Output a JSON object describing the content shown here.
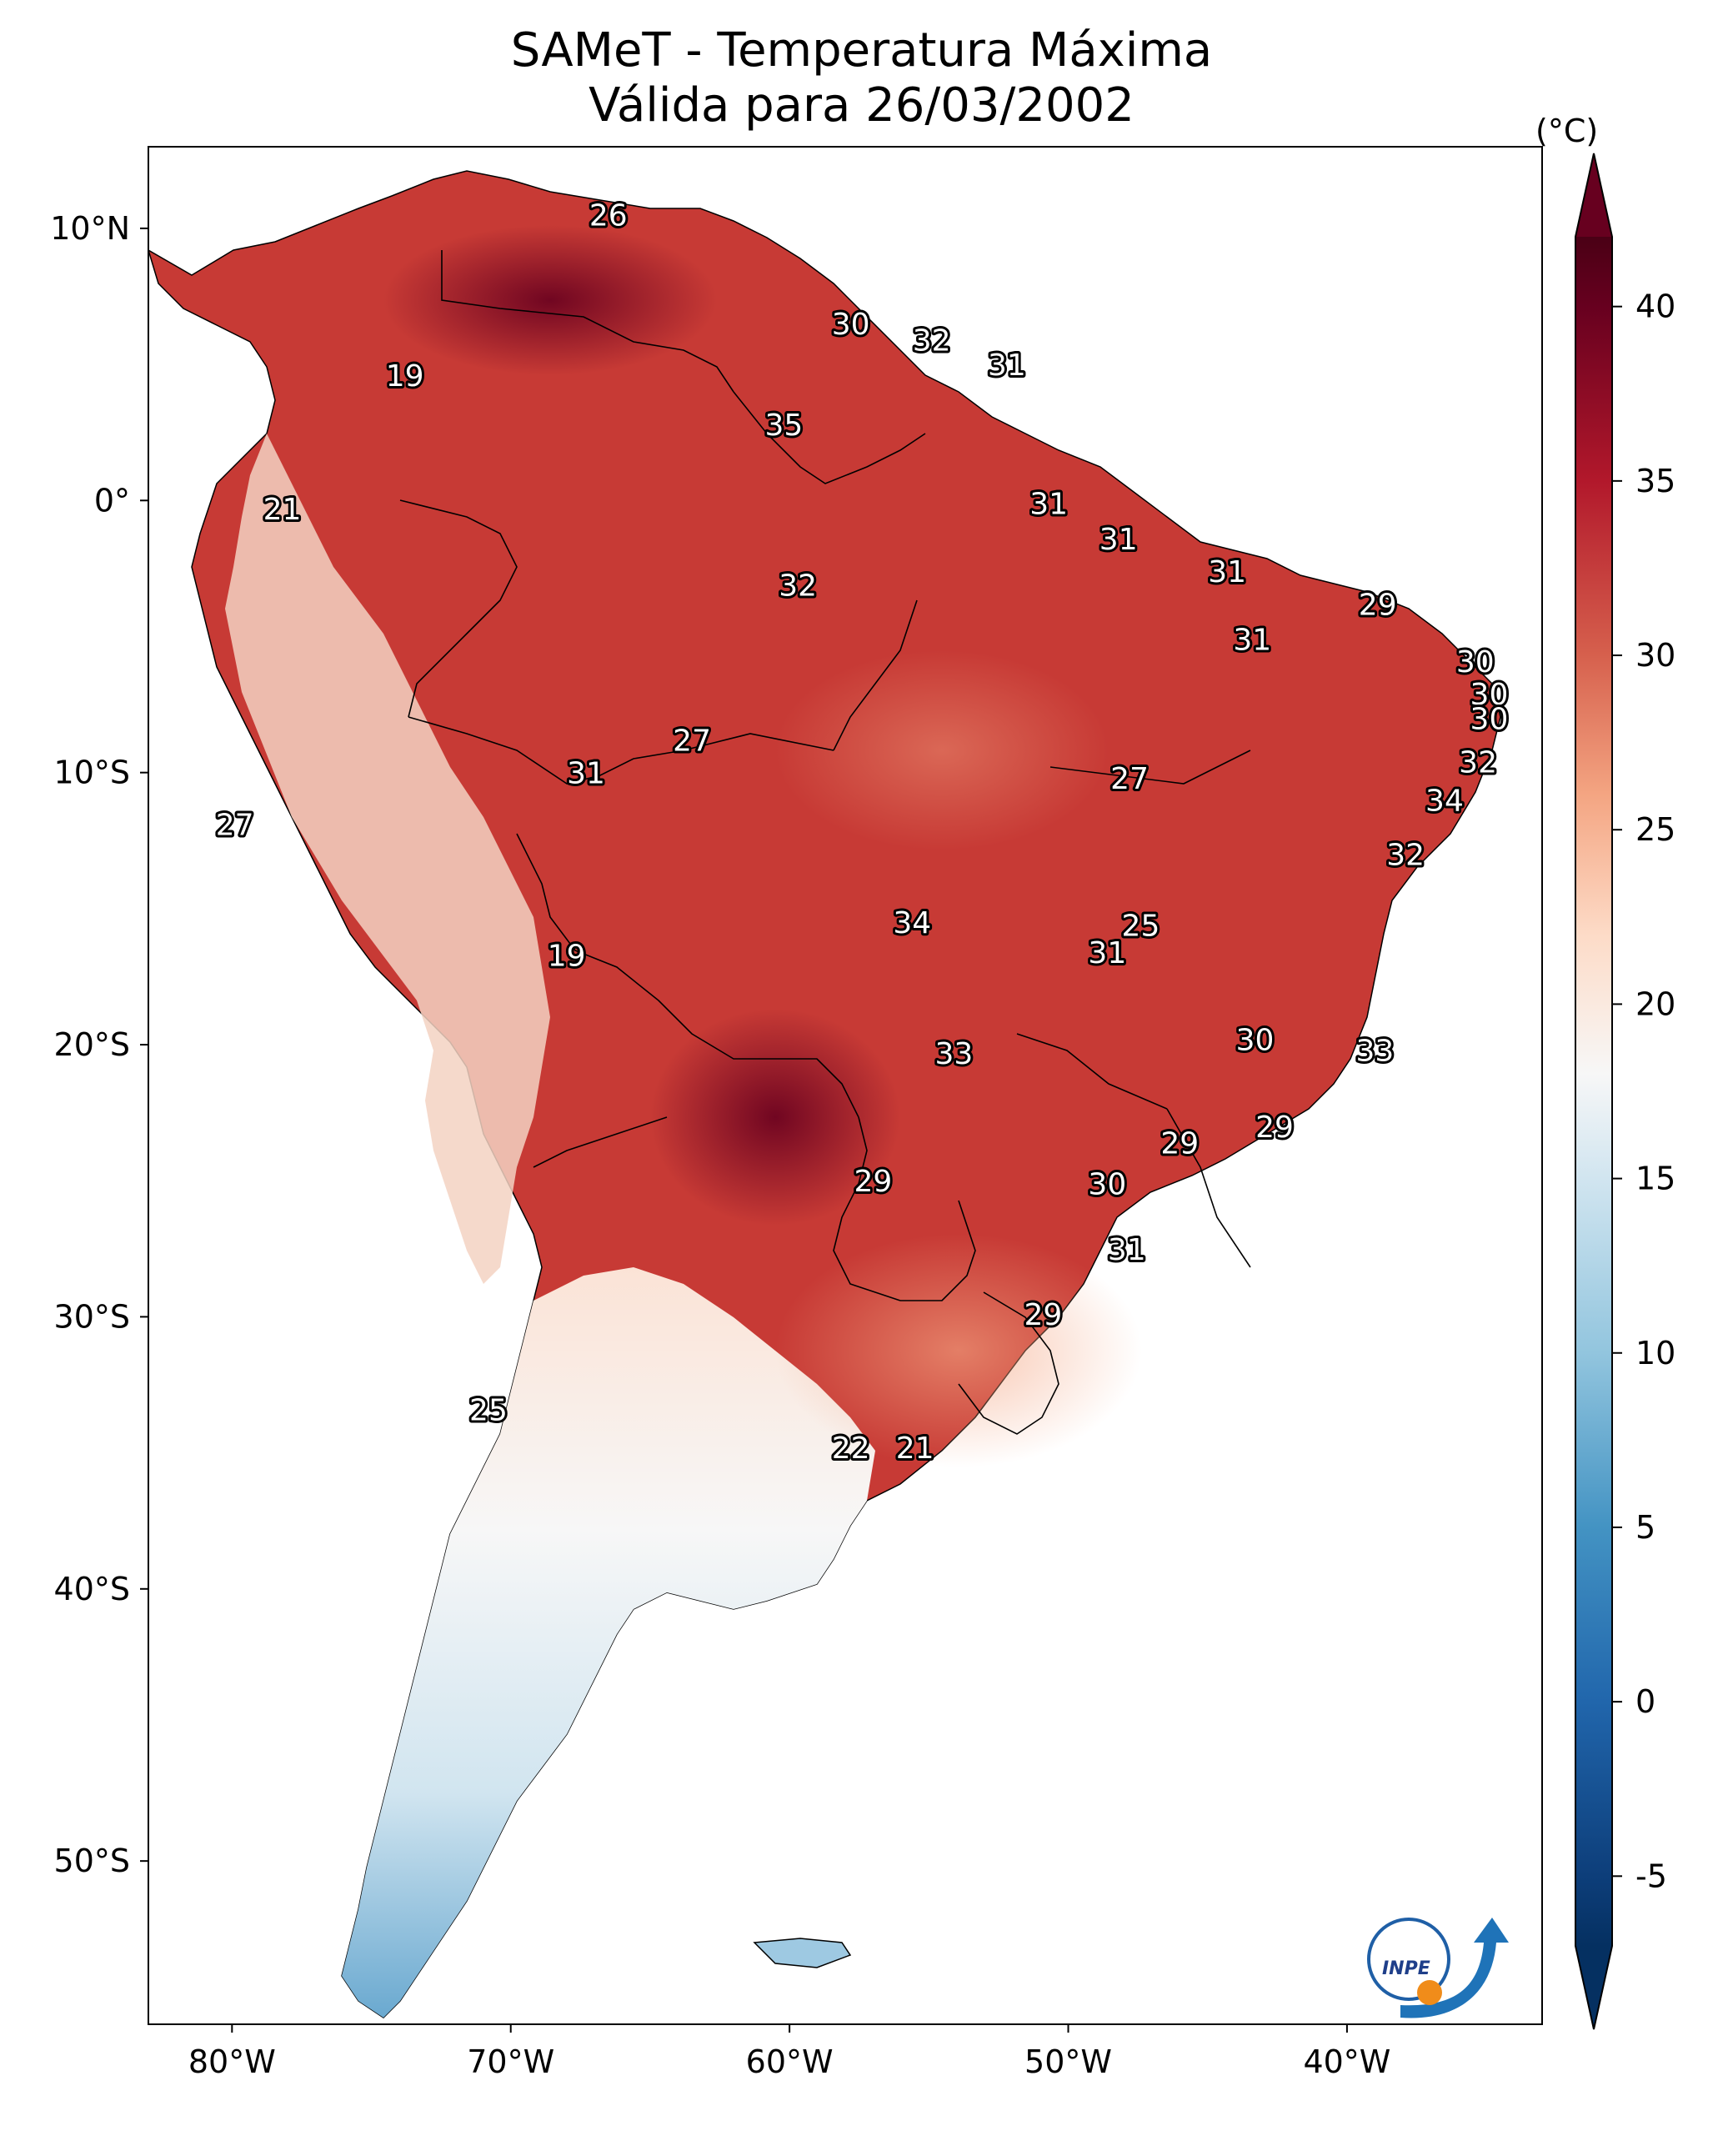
{
  "title": {
    "line1": "SAMeT - Temperatura Máxima",
    "line2": "Válida para 26/03/2002"
  },
  "colorbar": {
    "unit": "(°C)",
    "min": -7,
    "max": 42,
    "ticks": [
      "40",
      "35",
      "30",
      "25",
      "20",
      "15",
      "10",
      "5",
      "0",
      "-5"
    ],
    "tick_values": [
      40,
      35,
      30,
      25,
      20,
      15,
      10,
      5,
      0,
      -5
    ],
    "colors": {
      "-7": "#053061",
      "-5": "#0d3e7a",
      "0": "#2166ac",
      "5": "#4393c3",
      "10": "#92c5de",
      "15": "#d1e5f0",
      "18": "#f7f7f7",
      "22": "#fddbc7",
      "26": "#f4a582",
      "30": "#d6604d",
      "35": "#b2182b",
      "40": "#67001f",
      "42": "#4a0015"
    }
  },
  "axes": {
    "lon_ticks": [
      "80°W",
      "70°W",
      "60°W",
      "50°W",
      "40°W"
    ],
    "lon_values": [
      -80,
      -70,
      -60,
      -50,
      -40
    ],
    "lat_ticks": [
      "10°N",
      "0°",
      "10°S",
      "20°S",
      "30°S",
      "40°S",
      "50°S"
    ],
    "lat_values": [
      10,
      0,
      -10,
      -20,
      -30,
      -40,
      -50
    ],
    "lon_range": [
      -83,
      -33
    ],
    "lat_range": [
      -56,
      13
    ]
  },
  "labels": [
    {
      "text": "26",
      "lon": -66.5,
      "lat": 10.5
    },
    {
      "text": "30",
      "lon": -57.8,
      "lat": 6.5
    },
    {
      "text": "32",
      "lon": -54.9,
      "lat": 5.9
    },
    {
      "text": "31",
      "lon": -52.2,
      "lat": 5.0
    },
    {
      "text": "19",
      "lon": -73.8,
      "lat": 4.6
    },
    {
      "text": "35",
      "lon": -60.2,
      "lat": 2.8
    },
    {
      "text": "21",
      "lon": -78.2,
      "lat": -0.3
    },
    {
      "text": "31",
      "lon": -50.7,
      "lat": -0.1
    },
    {
      "text": "31",
      "lon": -48.2,
      "lat": -1.4
    },
    {
      "text": "31",
      "lon": -44.3,
      "lat": -2.6
    },
    {
      "text": "29",
      "lon": -38.9,
      "lat": -3.8
    },
    {
      "text": "32",
      "lon": -59.7,
      "lat": -3.1
    },
    {
      "text": "31",
      "lon": -43.4,
      "lat": -5.1
    },
    {
      "text": "30",
      "lon": -35.4,
      "lat": -5.9
    },
    {
      "text": "30",
      "lon": -34.9,
      "lat": -7.1
    },
    {
      "text": "30",
      "lon": -34.9,
      "lat": -8.0
    },
    {
      "text": "27",
      "lon": -63.5,
      "lat": -8.8
    },
    {
      "text": "32",
      "lon": -35.3,
      "lat": -9.6
    },
    {
      "text": "31",
      "lon": -67.3,
      "lat": -10.0
    },
    {
      "text": "27",
      "lon": -47.8,
      "lat": -10.2
    },
    {
      "text": "34",
      "lon": -36.5,
      "lat": -11.0
    },
    {
      "text": "27",
      "lon": -79.9,
      "lat": -11.9
    },
    {
      "text": "32",
      "lon": -37.9,
      "lat": -13.0
    },
    {
      "text": "34",
      "lon": -55.6,
      "lat": -15.5
    },
    {
      "text": "25",
      "lon": -47.4,
      "lat": -15.6
    },
    {
      "text": "31",
      "lon": -48.6,
      "lat": -16.6
    },
    {
      "text": "19",
      "lon": -68.0,
      "lat": -16.7
    },
    {
      "text": "30",
      "lon": -43.3,
      "lat": -19.8
    },
    {
      "text": "33",
      "lon": -39.0,
      "lat": -20.2
    },
    {
      "text": "33",
      "lon": -54.1,
      "lat": -20.3
    },
    {
      "text": "29",
      "lon": -42.6,
      "lat": -23.0
    },
    {
      "text": "29",
      "lon": -46.0,
      "lat": -23.6
    },
    {
      "text": "29",
      "lon": -57.0,
      "lat": -25.0
    },
    {
      "text": "30",
      "lon": -48.6,
      "lat": -25.1
    },
    {
      "text": "31",
      "lon": -47.9,
      "lat": -27.5
    },
    {
      "text": "29",
      "lon": -50.9,
      "lat": -29.9
    },
    {
      "text": "25",
      "lon": -70.8,
      "lat": -33.4
    },
    {
      "text": "22",
      "lon": -57.8,
      "lat": -34.8
    },
    {
      "text": "21",
      "lon": -55.5,
      "lat": -34.8
    }
  ]
}
